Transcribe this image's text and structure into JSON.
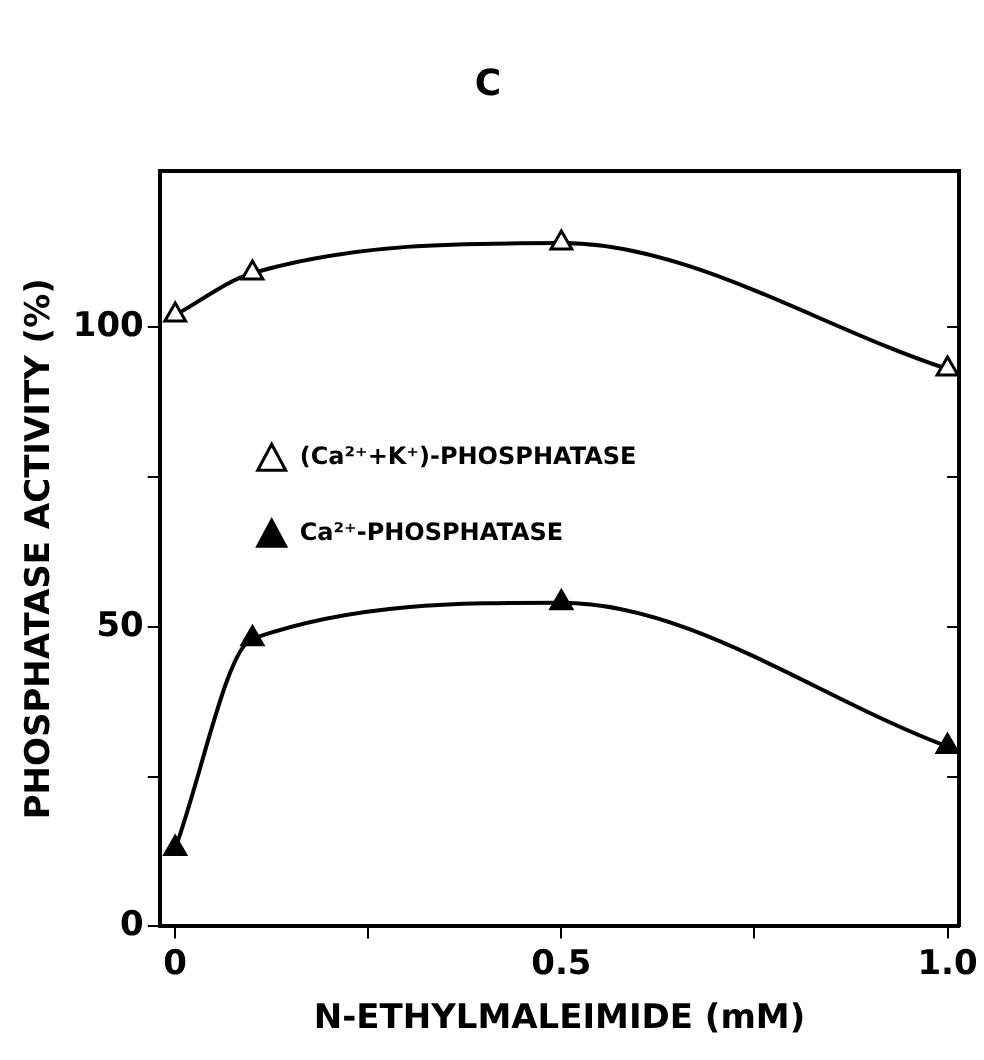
{
  "chart_data": {
    "type": "line",
    "title": "C",
    "xlabel": "N-ETHYLMALEIMIDE (mM)",
    "ylabel": "PHOSPHATASE ACTIVITY (%)",
    "x": [
      0,
      0.1,
      0.5,
      1.0
    ],
    "series": [
      {
        "name": "(Ca²⁺+K⁺)-PHOSPHATASE",
        "color": "#000000",
        "values": [
          102,
          109,
          114,
          93
        ]
      },
      {
        "name": "Ca²⁺-PHOSPHATASE",
        "color": "#000000",
        "values": [
          13,
          48,
          54,
          30
        ]
      }
    ],
    "xlim": [
      -0.02,
      1.015
    ],
    "xticks": [
      0,
      {
        "value": 0.25,
        "label": null
      },
      0.5,
      {
        "value": 0.75,
        "label": null
      },
      {
        "value": 1.0,
        "label": "1.0"
      }
    ],
    "ylim": [
      0,
      126
    ],
    "yticks": [
      0,
      {
        "value": 25,
        "label": null
      },
      50,
      {
        "value": 75,
        "label": null
      },
      100
    ],
    "marker": "triangle",
    "line_style": "solid",
    "grid": false,
    "legend": "left"
  }
}
